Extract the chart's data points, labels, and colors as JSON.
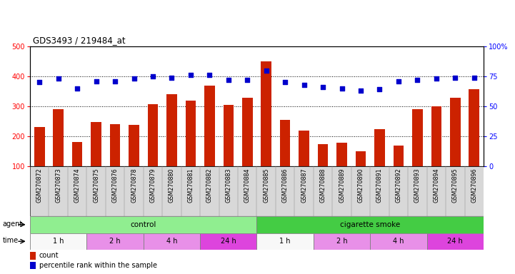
{
  "title": "GDS3493 / 219484_at",
  "samples": [
    "GSM270872",
    "GSM270873",
    "GSM270874",
    "GSM270875",
    "GSM270876",
    "GSM270878",
    "GSM270879",
    "GSM270880",
    "GSM270881",
    "GSM270882",
    "GSM270883",
    "GSM270884",
    "GSM270885",
    "GSM270886",
    "GSM270887",
    "GSM270888",
    "GSM270889",
    "GSM270890",
    "GSM270891",
    "GSM270892",
    "GSM270893",
    "GSM270894",
    "GSM270895",
    "GSM270896"
  ],
  "counts": [
    230,
    290,
    180,
    248,
    240,
    238,
    307,
    340,
    320,
    370,
    305,
    328,
    450,
    255,
    220,
    175,
    178,
    150,
    225,
    170,
    290,
    300,
    328,
    358
  ],
  "percentile": [
    70,
    73,
    65,
    71,
    71,
    73,
    75,
    74,
    76,
    76,
    72,
    72,
    80,
    70,
    68,
    66,
    65,
    63,
    64,
    71,
    72,
    73,
    74,
    74
  ],
  "bar_color": "#cc2200",
  "dot_color": "#0000cc",
  "ylim_left": [
    100,
    500
  ],
  "ylim_right": [
    0,
    100
  ],
  "yticks_left": [
    100,
    200,
    300,
    400,
    500
  ],
  "yticks_right": [
    0,
    25,
    50,
    75,
    100
  ],
  "ytick_labels_right": [
    "0",
    "25",
    "50",
    "75",
    "100%"
  ],
  "gridlines": [
    200,
    300,
    400
  ],
  "time_groups": [
    {
      "label": "1 h",
      "start": 0,
      "end": 3,
      "color": "#f8f8f8"
    },
    {
      "label": "2 h",
      "start": 3,
      "end": 6,
      "color": "#e890e8"
    },
    {
      "label": "4 h",
      "start": 6,
      "end": 9,
      "color": "#e890e8"
    },
    {
      "label": "24 h",
      "start": 9,
      "end": 12,
      "color": "#dd44dd"
    },
    {
      "label": "1 h",
      "start": 12,
      "end": 15,
      "color": "#f8f8f8"
    },
    {
      "label": "2 h",
      "start": 15,
      "end": 18,
      "color": "#e890e8"
    },
    {
      "label": "4 h",
      "start": 18,
      "end": 21,
      "color": "#e890e8"
    },
    {
      "label": "24 h",
      "start": 21,
      "end": 24,
      "color": "#dd44dd"
    }
  ],
  "legend_count_label": "count",
  "legend_pct_label": "percentile rank within the sample"
}
